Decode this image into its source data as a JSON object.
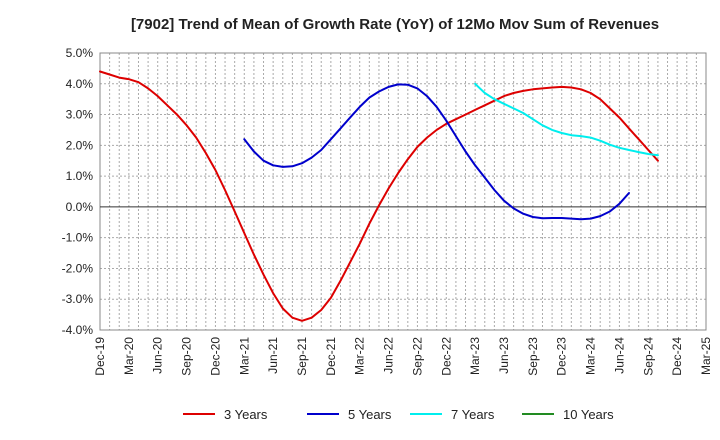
{
  "chart_data": {
    "type": "line",
    "title": "[7902]  Trend of Mean of Growth Rate (YoY) of 12Mo Mov Sum of Revenues",
    "xlabel": "",
    "ylabel": "",
    "ylim": [
      -4.0,
      5.0
    ],
    "y_ticks": [
      5.0,
      4.0,
      3.0,
      2.0,
      1.0,
      0.0,
      -1.0,
      -2.0,
      -3.0,
      -4.0
    ],
    "y_tick_labels": [
      "5.0%",
      "4.0%",
      "3.0%",
      "2.0%",
      "1.0%",
      "0.0%",
      "-1.0%",
      "-2.0%",
      "-3.0%",
      "-4.0%"
    ],
    "x_tick_labels": [
      "Dec-19",
      "Mar-20",
      "Jun-20",
      "Sep-20",
      "Dec-20",
      "Mar-21",
      "Jun-21",
      "Sep-21",
      "Dec-21",
      "Mar-22",
      "Jun-22",
      "Sep-22",
      "Dec-22",
      "Mar-23",
      "Jun-23",
      "Sep-23",
      "Dec-23",
      "Mar-24",
      "Jun-24",
      "Sep-24",
      "Dec-24",
      "Mar-25"
    ],
    "x_count_months": 63,
    "grid": true,
    "legend_position": "bottom",
    "series": [
      {
        "name": "3 Years",
        "color": "#dd0000",
        "start_month": 0,
        "values": [
          4.4,
          4.3,
          4.2,
          4.15,
          4.05,
          3.85,
          3.6,
          3.3,
          3.0,
          2.65,
          2.25,
          1.75,
          1.2,
          0.55,
          -0.15,
          -0.85,
          -1.55,
          -2.2,
          -2.8,
          -3.3,
          -3.6,
          -3.7,
          -3.6,
          -3.35,
          -2.95,
          -2.4,
          -1.8,
          -1.2,
          -0.55,
          0.05,
          0.6,
          1.1,
          1.55,
          1.95,
          2.25,
          2.5,
          2.7,
          2.85,
          3.0,
          3.15,
          3.3,
          3.45,
          3.6,
          3.7,
          3.77,
          3.82,
          3.85,
          3.88,
          3.9,
          3.88,
          3.82,
          3.7,
          3.5,
          3.2,
          2.9,
          2.55,
          2.2,
          1.85,
          1.5
        ]
      },
      {
        "name": "5 Years",
        "color": "#0000cc",
        "start_month": 15,
        "values": [
          2.2,
          1.8,
          1.5,
          1.35,
          1.3,
          1.32,
          1.42,
          1.6,
          1.85,
          2.2,
          2.55,
          2.9,
          3.25,
          3.55,
          3.75,
          3.9,
          3.98,
          3.97,
          3.85,
          3.6,
          3.25,
          2.8,
          2.3,
          1.8,
          1.35,
          0.95,
          0.55,
          0.2,
          -0.05,
          -0.22,
          -0.33,
          -0.37,
          -0.36,
          -0.36,
          -0.38,
          -0.4,
          -0.38,
          -0.3,
          -0.15,
          0.1,
          0.45
        ]
      },
      {
        "name": "7 Years",
        "color": "#00eeee",
        "start_month": 39,
        "values": [
          4.0,
          3.7,
          3.5,
          3.35,
          3.2,
          3.05,
          2.85,
          2.65,
          2.5,
          2.4,
          2.33,
          2.3,
          2.25,
          2.15,
          2.02,
          1.92,
          1.85,
          1.78,
          1.72,
          1.68
        ]
      },
      {
        "name": "10 Years",
        "color": "#228b22",
        "start_month": 0,
        "values": []
      }
    ]
  }
}
